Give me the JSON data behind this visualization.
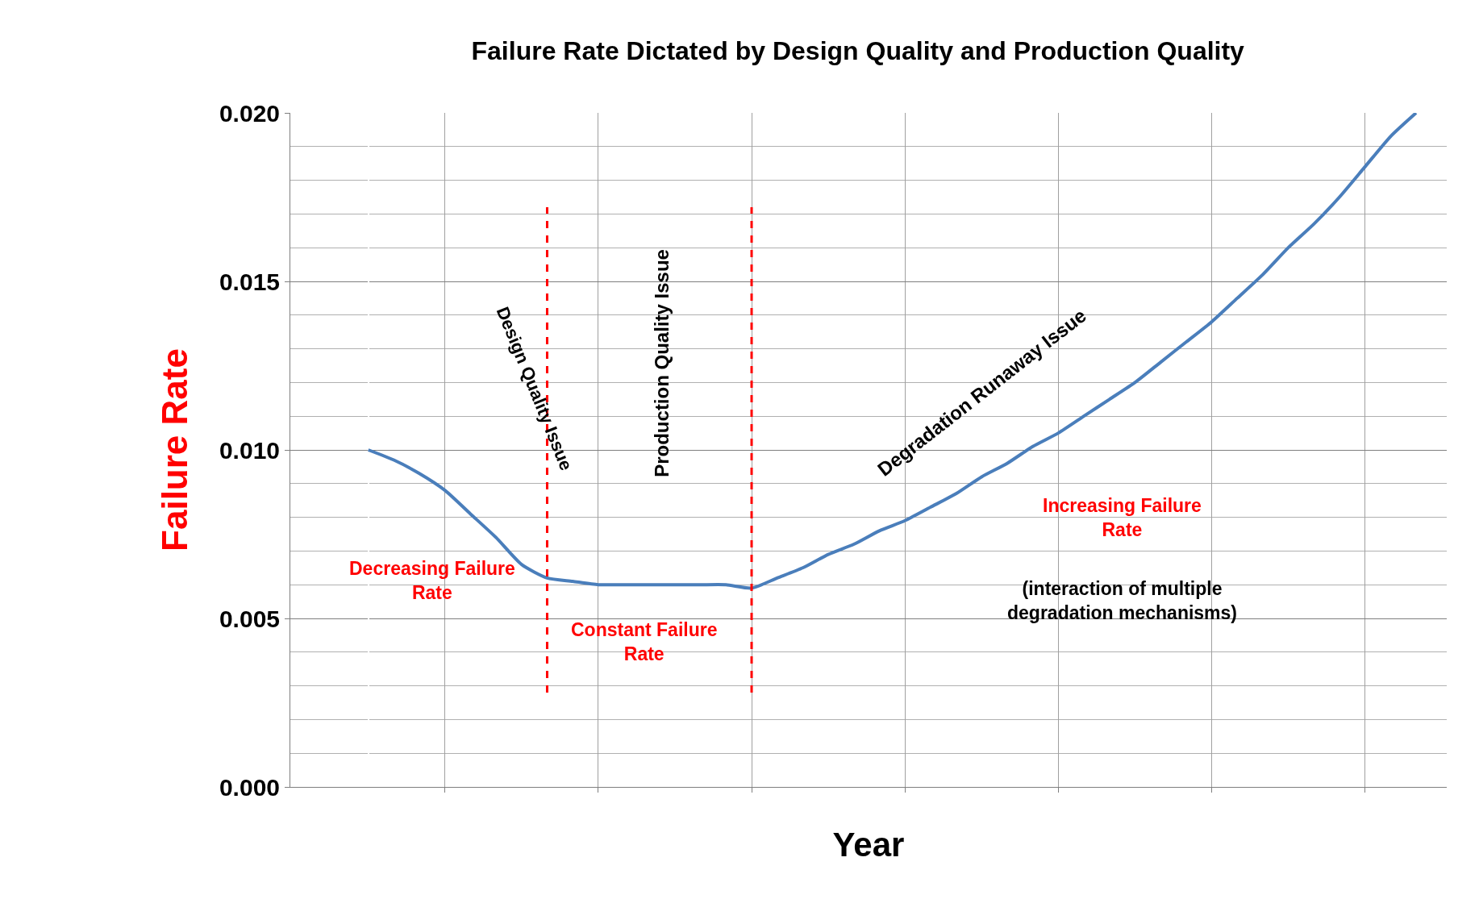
{
  "chart_data": {
    "type": "line",
    "title": "Failure Rate Dictated by Design Quality and Production Quality",
    "xlabel": "Year",
    "ylabel": "Failure Rate",
    "categories": [
      null,
      null,
      null,
      null,
      null,
      null,
      null,
      null,
      null,
      null,
      null,
      null,
      null,
      null,
      null,
      null,
      null,
      null,
      null,
      null,
      null,
      null,
      null,
      null,
      null,
      null,
      null,
      null,
      null,
      null,
      null,
      null,
      null,
      null,
      null,
      null,
      null,
      null,
      null,
      null,
      null,
      null
    ],
    "series": [
      {
        "color": "#4a7ebb",
        "values": [
          0.01,
          0.0097,
          0.0093,
          0.0088,
          0.0081,
          0.0074,
          0.0066,
          0.0062,
          0.0061,
          0.006,
          0.006,
          0.006,
          0.006,
          0.006,
          0.006,
          0.0059,
          0.0062,
          0.0065,
          0.0069,
          0.0072,
          0.0076,
          0.0079,
          0.0083,
          0.0087,
          0.0092,
          0.0096,
          0.0101,
          0.0105,
          0.011,
          0.0115,
          0.012,
          0.0126,
          0.0132,
          0.0138,
          0.0145,
          0.0152,
          0.016,
          0.0167,
          0.0175,
          0.0184,
          0.0193,
          0.02
        ]
      }
    ],
    "ylim": [
      0,
      0.02
    ],
    "yticks": [
      {
        "value": 0,
        "label": "0.000"
      },
      {
        "value": 0.005,
        "label": "0.005"
      },
      {
        "value": 0.01,
        "label": "0.010"
      },
      {
        "value": 0.015,
        "label": "0.015"
      },
      {
        "value": 0.02,
        "label": "0.020"
      }
    ],
    "annotations": [
      "Design Quality Issue",
      "Production Quality Issue",
      "Degradation Runaway Issue",
      "Decreasing Failure Rate",
      "Constant Failure Rate",
      "Increasing Failure Rate",
      "(interaction of multiple degradation mechanisms)"
    ],
    "grid": true,
    "legend": false,
    "tick_labels": "y",
    "marker": "none",
    "line_style": "solid"
  }
}
